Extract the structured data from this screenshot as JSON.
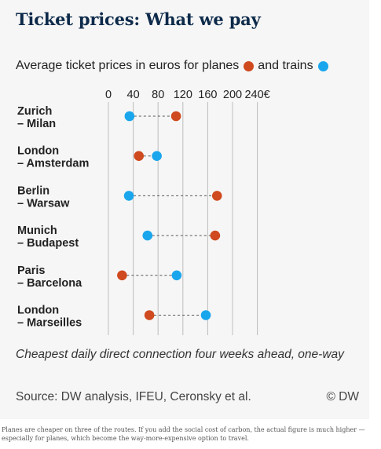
{
  "title": "Ticket prices: What we pay",
  "subtitle": {
    "part1": "Average ticket prices in euros for planes",
    "part2": "and trains"
  },
  "colors": {
    "plane": "#cf4a1f",
    "train": "#1aa6ec",
    "background": "#f6f6f6",
    "grid": "#bdbdbd"
  },
  "chart_data": {
    "type": "scatter",
    "subtype": "dumbbell",
    "title": "Ticket prices: What we pay",
    "categories": [
      [
        "Zurich",
        "– Milan"
      ],
      [
        "London",
        "– Amsterdam"
      ],
      [
        "Berlin",
        "– Warsaw"
      ],
      [
        "Munich",
        "– Budapest"
      ],
      [
        "Paris",
        "– Barcelona"
      ],
      [
        "London",
        "– Marseilles"
      ]
    ],
    "series": [
      {
        "name": "planes",
        "color": "#cf4a1f",
        "values": [
          109,
          49,
          175,
          172,
          22,
          66
        ]
      },
      {
        "name": "trains",
        "color": "#1aa6ec",
        "values": [
          34,
          78,
          33,
          63,
          110,
          157
        ]
      }
    ],
    "x_ticks": [
      0,
      40,
      80,
      120,
      160,
      200,
      240
    ],
    "x_tick_labels": [
      "0",
      "40",
      "80",
      "120",
      "160",
      "200",
      "240€"
    ],
    "xlim": [
      0,
      250
    ],
    "grid": true,
    "connector": "dashed",
    "legend": "inline in subtitle"
  },
  "note": "Cheapest daily direct connection four weeks ahead, one-way",
  "source": "Source: DW analysis, IFEU, Ceronsky et al.",
  "credit": "© DW",
  "caption": "Planes are cheaper on three of the routes. If you add the social cost of carbon, the actual figure is much higher — especially for planes, which become the way-more-expensive option to travel."
}
